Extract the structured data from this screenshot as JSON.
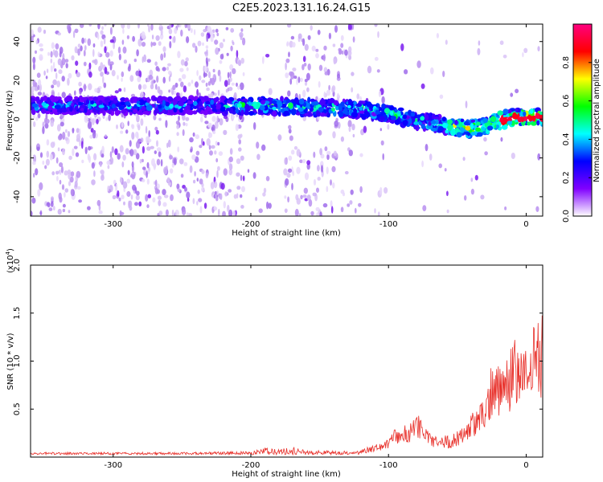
{
  "title": "C2E5.2023.131.16.24.G15",
  "colors": {
    "snr_line": "#e8302a",
    "axis": "#000000"
  },
  "chart_data": [
    {
      "type": "heatmap",
      "xlabel": "Height of straight line (km)",
      "ylabel": "Frequency (Hz)",
      "xlim": [
        -360,
        12
      ],
      "ylim": [
        -50,
        49
      ],
      "x_ticks": [
        -300,
        -200,
        -100,
        0
      ],
      "x_tick_labels": [
        "-300",
        "-200",
        "-100",
        "0"
      ],
      "y_ticks": [
        -40,
        -20,
        0,
        20,
        40
      ],
      "y_tick_labels": [
        "-40",
        "-20",
        "0",
        "20",
        "40"
      ],
      "ridge": {
        "x": [
          -360,
          -300,
          -250,
          -200,
          -150,
          -120,
          -100,
          -80,
          -60,
          -40,
          -30,
          -20,
          -10,
          0,
          12
        ],
        "y": [
          7,
          7,
          7,
          7,
          6,
          5,
          3,
          -1,
          -3,
          -5,
          -4,
          -1,
          1,
          1,
          1
        ]
      },
      "colorbar": {
        "label": "Normalized spectral amplitude",
        "range": [
          0,
          1
        ],
        "ticks": [
          0.0,
          0.2,
          0.4,
          0.6,
          0.8
        ],
        "tick_labels": [
          "0.0",
          "0.2",
          "0.4",
          "0.6",
          "0.8"
        ],
        "colormap": [
          "#ffffff",
          "#8000ff",
          "#0000ff",
          "#00ffff",
          "#00ff00",
          "#ffff00",
          "#ff0000",
          "#ff0080"
        ]
      }
    },
    {
      "type": "line",
      "xlabel": "Height of straight line (km)",
      "ylabel": "SNR (10 * v/v)",
      "scale_label_main": "(x10",
      "scale_label_exp": "4",
      "scale_label_end": ")",
      "xlim": [
        -360,
        12
      ],
      "ylim": [
        0,
        20000
      ],
      "x_ticks": [
        -300,
        -200,
        -100,
        0
      ],
      "x_tick_labels": [
        "-300",
        "-200",
        "-100",
        "0"
      ],
      "y_ticks": [
        5000,
        10000,
        15000,
        20000
      ],
      "y_tick_labels": [
        "0.5",
        "1.0",
        "1.5",
        "2.0"
      ],
      "envelope": {
        "x": [
          -360,
          -250,
          -200,
          -190,
          -180,
          -170,
          -160,
          -120,
          -105,
          -95,
          -85,
          -78,
          -70,
          -55,
          -48,
          -40,
          -30,
          -25,
          -15,
          -8,
          -2,
          5,
          12
        ],
        "y": [
          500,
          500,
          700,
          1500,
          1100,
          1600,
          900,
          800,
          1500,
          3000,
          3500,
          4500,
          2500,
          2200,
          3000,
          4500,
          6000,
          10000,
          10500,
          12500,
          11000,
          14500,
          15000
        ]
      }
    }
  ]
}
